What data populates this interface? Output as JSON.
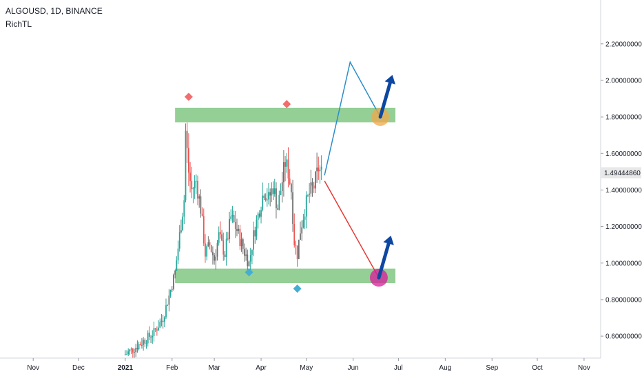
{
  "header": {
    "symbol_line": "ALGOUSD, 1D, BINANCE",
    "author": "RichTL"
  },
  "colors": {
    "up": "#26a69a",
    "down": "#ef5350",
    "neutral": "#6f6f6f",
    "zone": "#81c784",
    "blue_path": "#2b8ec9",
    "red_path": "#e53935",
    "target_arrow": "#0d47a1",
    "circle_top": "#f2a849",
    "circle_bottom": "#d81b9b",
    "marker_red": "#f26d6d",
    "marker_teal": "#45aed0",
    "price_label_bg": "#e8e8e8"
  },
  "chart_data": {
    "type": "candlestick",
    "title": "ALGOUSD, 1D, BINANCE",
    "x_axis": {
      "tick_labels": [
        "Nov",
        "Dec",
        "2021",
        "Feb",
        "Mar",
        "Apr",
        "May",
        "Jun",
        "Jul",
        "Aug",
        "Sep",
        "Oct",
        "Nov"
      ],
      "tick_dates": [
        "2020-11-01",
        "2020-12-01",
        "2021-01-01",
        "2021-02-01",
        "2021-03-01",
        "2021-04-01",
        "2021-05-01",
        "2021-06-01",
        "2021-07-01",
        "2021-08-01",
        "2021-09-01",
        "2021-10-01",
        "2021-11-01"
      ],
      "range": [
        "2020-10-10",
        "2021-11-12"
      ]
    },
    "y_axis": {
      "tick_labels": [
        "0.60000000",
        "0.80000000",
        "1.00000000",
        "1.20000000",
        "1.40000000",
        "1.60000000",
        "1.80000000",
        "2.00000000",
        "2.20000000"
      ],
      "tick_values": [
        0.6,
        0.8,
        1.0,
        1.2,
        1.4,
        1.6,
        1.8,
        2.0,
        2.2
      ],
      "range": [
        0.48,
        2.44
      ],
      "position": "right"
    },
    "last_price": {
      "label": "1.49444860",
      "value": 1.4944486
    },
    "price_path": [
      [
        "2021-01-01",
        0.5
      ],
      [
        "2021-01-08",
        0.54
      ],
      [
        "2021-01-14",
        0.58
      ],
      [
        "2021-01-20",
        0.62
      ],
      [
        "2021-01-26",
        0.7
      ],
      [
        "2021-01-30",
        0.82
      ],
      [
        "2021-02-03",
        0.95
      ],
      [
        "2021-02-06",
        1.15
      ],
      [
        "2021-02-09",
        1.35
      ],
      [
        "2021-02-10",
        1.72
      ],
      [
        "2021-02-12",
        1.5
      ],
      [
        "2021-02-14",
        1.4
      ],
      [
        "2021-02-17",
        1.45
      ],
      [
        "2021-02-20",
        1.3
      ],
      [
        "2021-02-23",
        1.05
      ],
      [
        "2021-02-26",
        1.1
      ],
      [
        "2021-03-01",
        1.02
      ],
      [
        "2021-03-04",
        1.15
      ],
      [
        "2021-03-08",
        1.05
      ],
      [
        "2021-03-12",
        1.25
      ],
      [
        "2021-03-16",
        1.18
      ],
      [
        "2021-03-20",
        1.08
      ],
      [
        "2021-03-24",
        1.0
      ],
      [
        "2021-03-27",
        1.15
      ],
      [
        "2021-03-31",
        1.3
      ],
      [
        "2021-04-03",
        1.4
      ],
      [
        "2021-04-06",
        1.35
      ],
      [
        "2021-04-09",
        1.42
      ],
      [
        "2021-04-12",
        1.3
      ],
      [
        "2021-04-15",
        1.45
      ],
      [
        "2021-04-17",
        1.55
      ],
      [
        "2021-04-19",
        1.5
      ],
      [
        "2021-04-21",
        1.4
      ],
      [
        "2021-04-23",
        1.12
      ],
      [
        "2021-04-25",
        1.05
      ],
      [
        "2021-04-27",
        1.18
      ],
      [
        "2021-04-30",
        1.3
      ],
      [
        "2021-05-03",
        1.38
      ],
      [
        "2021-05-06",
        1.42
      ],
      [
        "2021-05-09",
        1.52
      ],
      [
        "2021-05-11",
        1.49
      ]
    ],
    "zones": [
      {
        "from_date": "2021-02-03",
        "to_date": "2021-06-29",
        "low": 1.77,
        "high": 1.85
      },
      {
        "from_date": "2021-02-03",
        "to_date": "2021-06-29",
        "low": 0.89,
        "high": 0.97
      }
    ],
    "markers": [
      {
        "date": "2021-02-12",
        "value": 1.91,
        "color": "red"
      },
      {
        "date": "2021-04-18",
        "value": 1.87,
        "color": "red"
      },
      {
        "date": "2021-03-24",
        "value": 0.95,
        "color": "teal"
      },
      {
        "date": "2021-04-25",
        "value": 0.86,
        "color": "teal"
      }
    ],
    "projection_up": [
      [
        "2021-05-13",
        1.48
      ],
      [
        "2021-05-30",
        2.1
      ],
      [
        "2021-06-19",
        1.8
      ]
    ],
    "projection_down": [
      [
        "2021-05-13",
        1.45
      ],
      [
        "2021-06-18",
        0.92
      ]
    ],
    "targets": [
      {
        "date": "2021-06-19",
        "value": 1.8,
        "arrow_to_date": "2021-06-27",
        "arrow_to_value": 2.03
      },
      {
        "date": "2021-06-18",
        "value": 0.92,
        "arrow_to_date": "2021-06-26",
        "arrow_to_value": 1.15
      }
    ]
  }
}
